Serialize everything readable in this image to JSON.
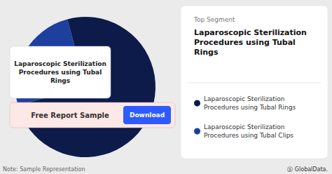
{
  "chart_data": {
    "type": "pie",
    "subtitle": "Top Segment",
    "title": "Laparoscopic Sterilization\nProcedures using Tubal\nRings",
    "categories": [
      "Laparoscopic Sterilization\nProcedures using Tubal Rings",
      "Laparoscopic Sterilization\nProcedures using Tubal Clips"
    ],
    "values": [
      75,
      25
    ],
    "colors": [
      "#0d1b4b",
      "#1e3f9e"
    ],
    "legend": "right",
    "annotations": [
      "Laparoscopic Sterilization\nProcedures using Tubal\nRings",
      "Free Report Sample",
      "Download",
      "Note: Sample Representation",
      "Ⓢ GlobalData."
    ]
  }
}
